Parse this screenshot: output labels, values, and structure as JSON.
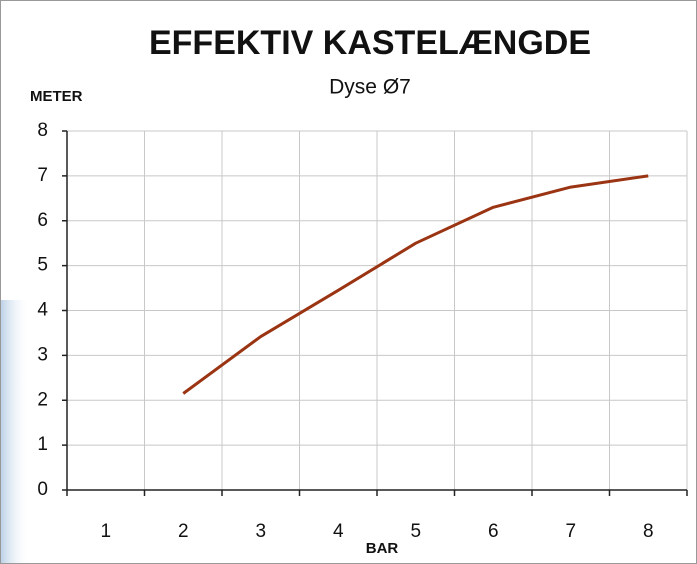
{
  "chart_data": {
    "type": "line",
    "title": "EFFEKTIV KASTELÆNGDE",
    "subtitle": "Dyse Ø7",
    "y_label": "METER",
    "x_label": "BAR",
    "categories": [
      "1",
      "2",
      "3",
      "4",
      "5",
      "6",
      "7",
      "8"
    ],
    "values": [
      null,
      2.15,
      3.42,
      4.45,
      5.5,
      6.3,
      6.75,
      7.0
    ],
    "color": "#9a3412",
    "ylim": [
      0,
      8
    ],
    "yticks": [
      0,
      1,
      2,
      3,
      4,
      5,
      6,
      7,
      8
    ],
    "grid": true
  }
}
